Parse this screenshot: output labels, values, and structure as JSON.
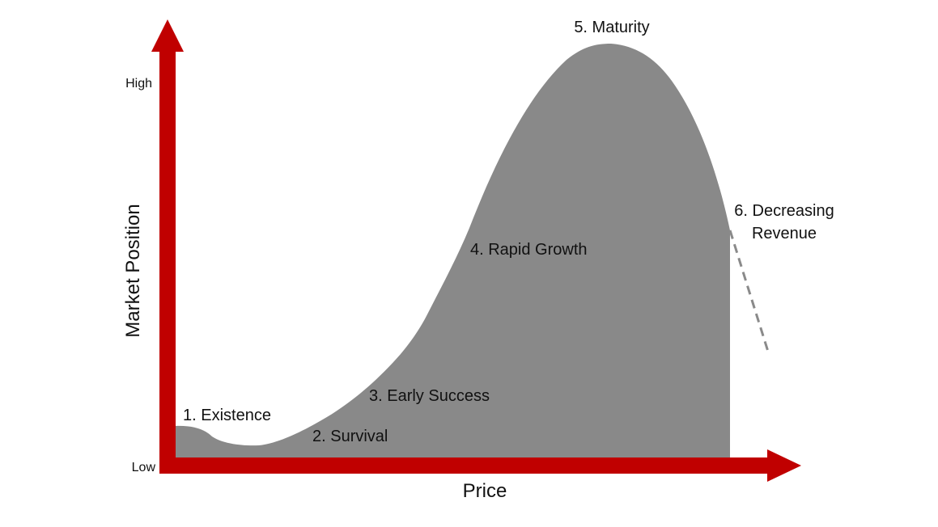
{
  "axes": {
    "x_label": "Price",
    "y_label": "Market Position",
    "y_high": "High",
    "y_low": "Low"
  },
  "stages": [
    {
      "id": "existence",
      "label": "1. Existence"
    },
    {
      "id": "survival",
      "label": "2. Survival"
    },
    {
      "id": "early-success",
      "label": "3. Early Success"
    },
    {
      "id": "rapid-growth",
      "label": "4. Rapid Growth"
    },
    {
      "id": "maturity",
      "label": "5. Maturity"
    },
    {
      "id": "decreasing-revenue",
      "label_line1": "6. Decreasing",
      "label_line2": "Revenue"
    }
  ],
  "colors": {
    "axis": "#c00000",
    "curve_fill": "#898989",
    "decline_line": "#8a8a8a"
  }
}
